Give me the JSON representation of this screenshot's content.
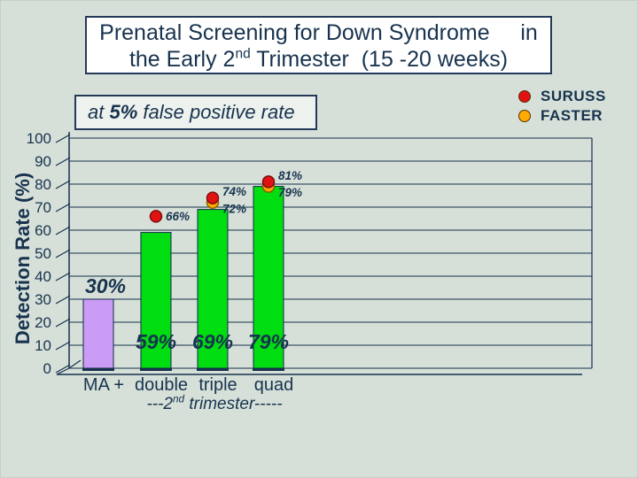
{
  "slide_title": {
    "line1": "Prenatal Screening for Down Syndrome     in",
    "line2_pre": "the Early 2",
    "line2_sup": "nd",
    "line2_post": " Trimester  (15 -20 weeks)"
  },
  "subtitle": {
    "pre": "at ",
    "bold": "5%",
    "post": " false positive rate"
  },
  "legend": {
    "items": [
      {
        "label": "SURUSS",
        "color": "#e21212"
      },
      {
        "label": "FASTER",
        "color": "#ffaa00"
      }
    ]
  },
  "colors": {
    "background": "#d6e0d8",
    "text_navy": "#18334f",
    "grid": "#16314c",
    "title_box_bg": "#ffffff",
    "subtitle_box_bg": "#eef2ee",
    "bar_ma_purple": "#ca9cf5",
    "bar_green": "#00dd11",
    "suruss_red": "#e21212",
    "suruss_stroke": "#7c0f0f",
    "faster_orange": "#ffaa00",
    "faster_stroke": "#8a5f00"
  },
  "chart_data": {
    "type": "bar",
    "title": "at 5% false positive rate",
    "ylabel": "Detection Rate (%)",
    "ylim": [
      0,
      100
    ],
    "ytick_step": 10,
    "grid": true,
    "legend_position": "top-right",
    "categories": [
      "MA +",
      "double",
      "triple",
      "quad"
    ],
    "bar_values": [
      30,
      59,
      69,
      79
    ],
    "bar_labels": [
      "30%",
      "59%",
      "69%",
      "79%"
    ],
    "bar_colors": [
      "#ca9cf5",
      "#00dd11",
      "#00dd11",
      "#00dd11"
    ],
    "series": [
      {
        "name": "SURUSS",
        "color": "#e21212",
        "points": [
          {
            "category": "double",
            "value": 66,
            "label": "66%"
          },
          {
            "category": "triple",
            "value": 74,
            "label": "74%"
          },
          {
            "category": "quad",
            "value": 81,
            "label": "81%"
          }
        ]
      },
      {
        "name": "FASTER",
        "color": "#ffaa00",
        "points": [
          {
            "category": "triple",
            "value": 72,
            "label": "72%"
          },
          {
            "category": "quad",
            "value": 79,
            "label": "79%"
          }
        ]
      }
    ],
    "x_axis_note_pre": "---2",
    "x_axis_note_sup": "nd",
    "x_axis_note_post": " trimester-----"
  }
}
